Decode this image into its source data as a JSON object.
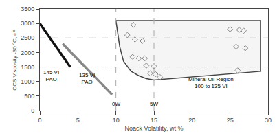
{
  "chart_data": {
    "type": "line",
    "xlabel": "Noack Volatility, wt %",
    "ylabel": "CCS Viscosity -30 °C, cP",
    "xlim": [
      0,
      30
    ],
    "ylim": [
      0,
      3500
    ],
    "xticks": [
      0,
      5,
      10,
      15,
      20,
      25,
      30
    ],
    "yticks": [
      0,
      500,
      1000,
      1500,
      2000,
      2500,
      3000,
      3500
    ],
    "grid": false,
    "series": [
      {
        "type": "area",
        "color": "#444444",
        "x": [
          10,
          29,
          29,
          15,
          14,
          13,
          12,
          11,
          10.5,
          10
        ],
        "values": [
          3100,
          3100,
          1350,
          1050,
          1100,
          1200,
          1350,
          1700,
          2200,
          3100
        ]
      },
      {
        "type": "line",
        "line_style": "dashed",
        "color": "#aaaaaa",
        "x": [
          10,
          10
        ],
        "values": [
          0,
          3500
        ]
      },
      {
        "type": "line",
        "line_style": "dashed",
        "color": "#aaaaaa",
        "x": [
          15,
          15
        ],
        "values": [
          0,
          3500
        ]
      },
      {
        "type": "line",
        "line_style": "dashed",
        "color": "#aaaaaa",
        "x": [
          0,
          30
        ],
        "values": [
          1500,
          1500
        ]
      },
      {
        "type": "line",
        "line_style": "dashed",
        "color": "#aaaaaa",
        "x": [
          0,
          30
        ],
        "values": [
          2500,
          2500
        ]
      },
      {
        "type": "line",
        "line_style": "solid",
        "color": "#111111",
        "x": [
          0,
          4
        ],
        "values": [
          3000,
          1500
        ]
      },
      {
        "type": "line",
        "line_style": "solid",
        "color": "#888888",
        "x": [
          3,
          9.5
        ],
        "values": [
          2300,
          550
        ]
      },
      {
        "type": "scatter",
        "marker": "diamond-open",
        "color": "#888888",
        "x": [
          11.5,
          12.3,
          12.5,
          13.5,
          12.2,
          13,
          13.8,
          14.0,
          15.0,
          14.5,
          15.2,
          15.8,
          25.0,
          26.2,
          26.8,
          25.8,
          27.0,
          26.0
        ],
        "values": [
          2600,
          2950,
          2450,
          2400,
          1850,
          1800,
          1800,
          1550,
          1530,
          1280,
          1250,
          1150,
          2800,
          2780,
          2750,
          2200,
          2150,
          1380
        ]
      }
    ],
    "annotations": [
      {
        "x": 1.5,
        "y": 1200,
        "text": "145 VI\nPAO"
      },
      {
        "x": 6.2,
        "y": 1100,
        "text": "135 VI\nPAO"
      },
      {
        "x": 10,
        "y": 80,
        "text": "0W"
      },
      {
        "x": 15,
        "y": 80,
        "text": "5W"
      },
      {
        "x": 22.5,
        "y": 950,
        "text": "Mineral Oil Region\n100 to 135 VI"
      }
    ]
  }
}
